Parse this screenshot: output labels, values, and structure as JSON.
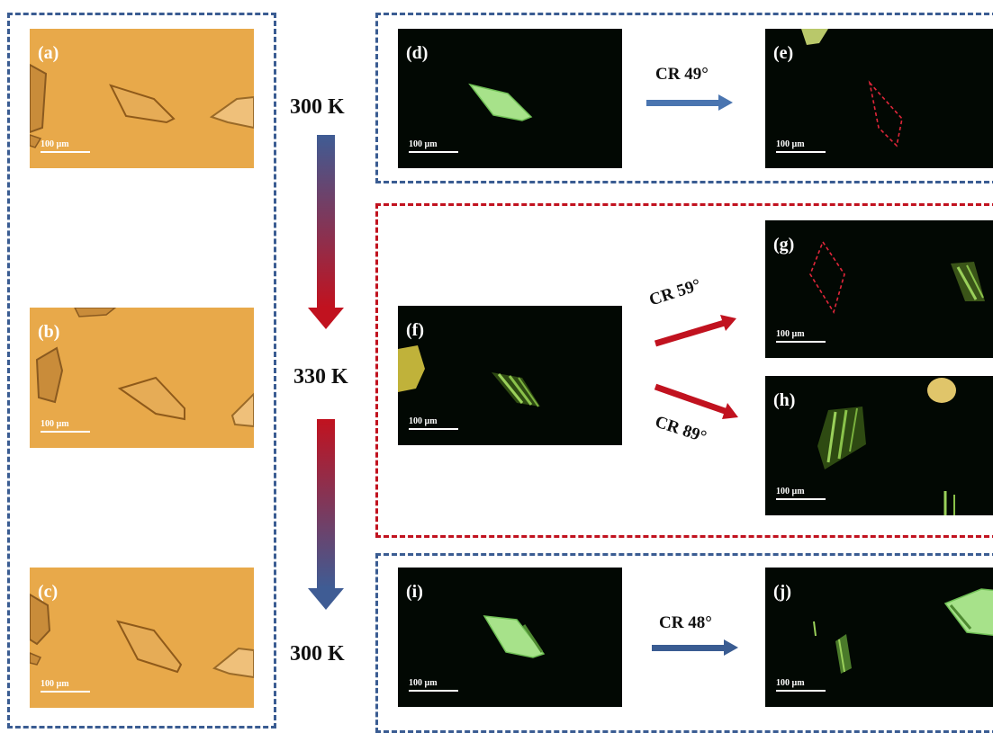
{
  "panels": {
    "a": {
      "label": "(a)",
      "scale": "100 µm"
    },
    "b": {
      "label": "(b)",
      "scale": "100 µm"
    },
    "c": {
      "label": "(c)",
      "scale": "100 µm"
    },
    "d": {
      "label": "(d)",
      "scale": "100 µm"
    },
    "e": {
      "label": "(e)",
      "scale": "100 µm"
    },
    "f": {
      "label": "(f)",
      "scale": "100 µm"
    },
    "g": {
      "label": "(g)",
      "scale": "100 µm"
    },
    "h": {
      "label": "(h)",
      "scale": "100 µm"
    },
    "i": {
      "label": "(i)",
      "scale": "100 µm"
    },
    "j": {
      "label": "(j)",
      "scale": "100 µm"
    }
  },
  "temperatures": {
    "start": "300 K",
    "middle": "330 K",
    "end": "300 K"
  },
  "rotations": {
    "d_to_e": "CR 49°",
    "f_to_g": "CR 59°",
    "f_to_h": "CR 89°",
    "i_to_j": "CR 48°"
  },
  "colors": {
    "frame_blue": "#3a5c92",
    "frame_red": "#c1121f",
    "arrow_blue": "#4a75b0",
    "arrow_red": "#c1121f",
    "bright_field": "#e8a94a",
    "dark_field": "#020803"
  }
}
